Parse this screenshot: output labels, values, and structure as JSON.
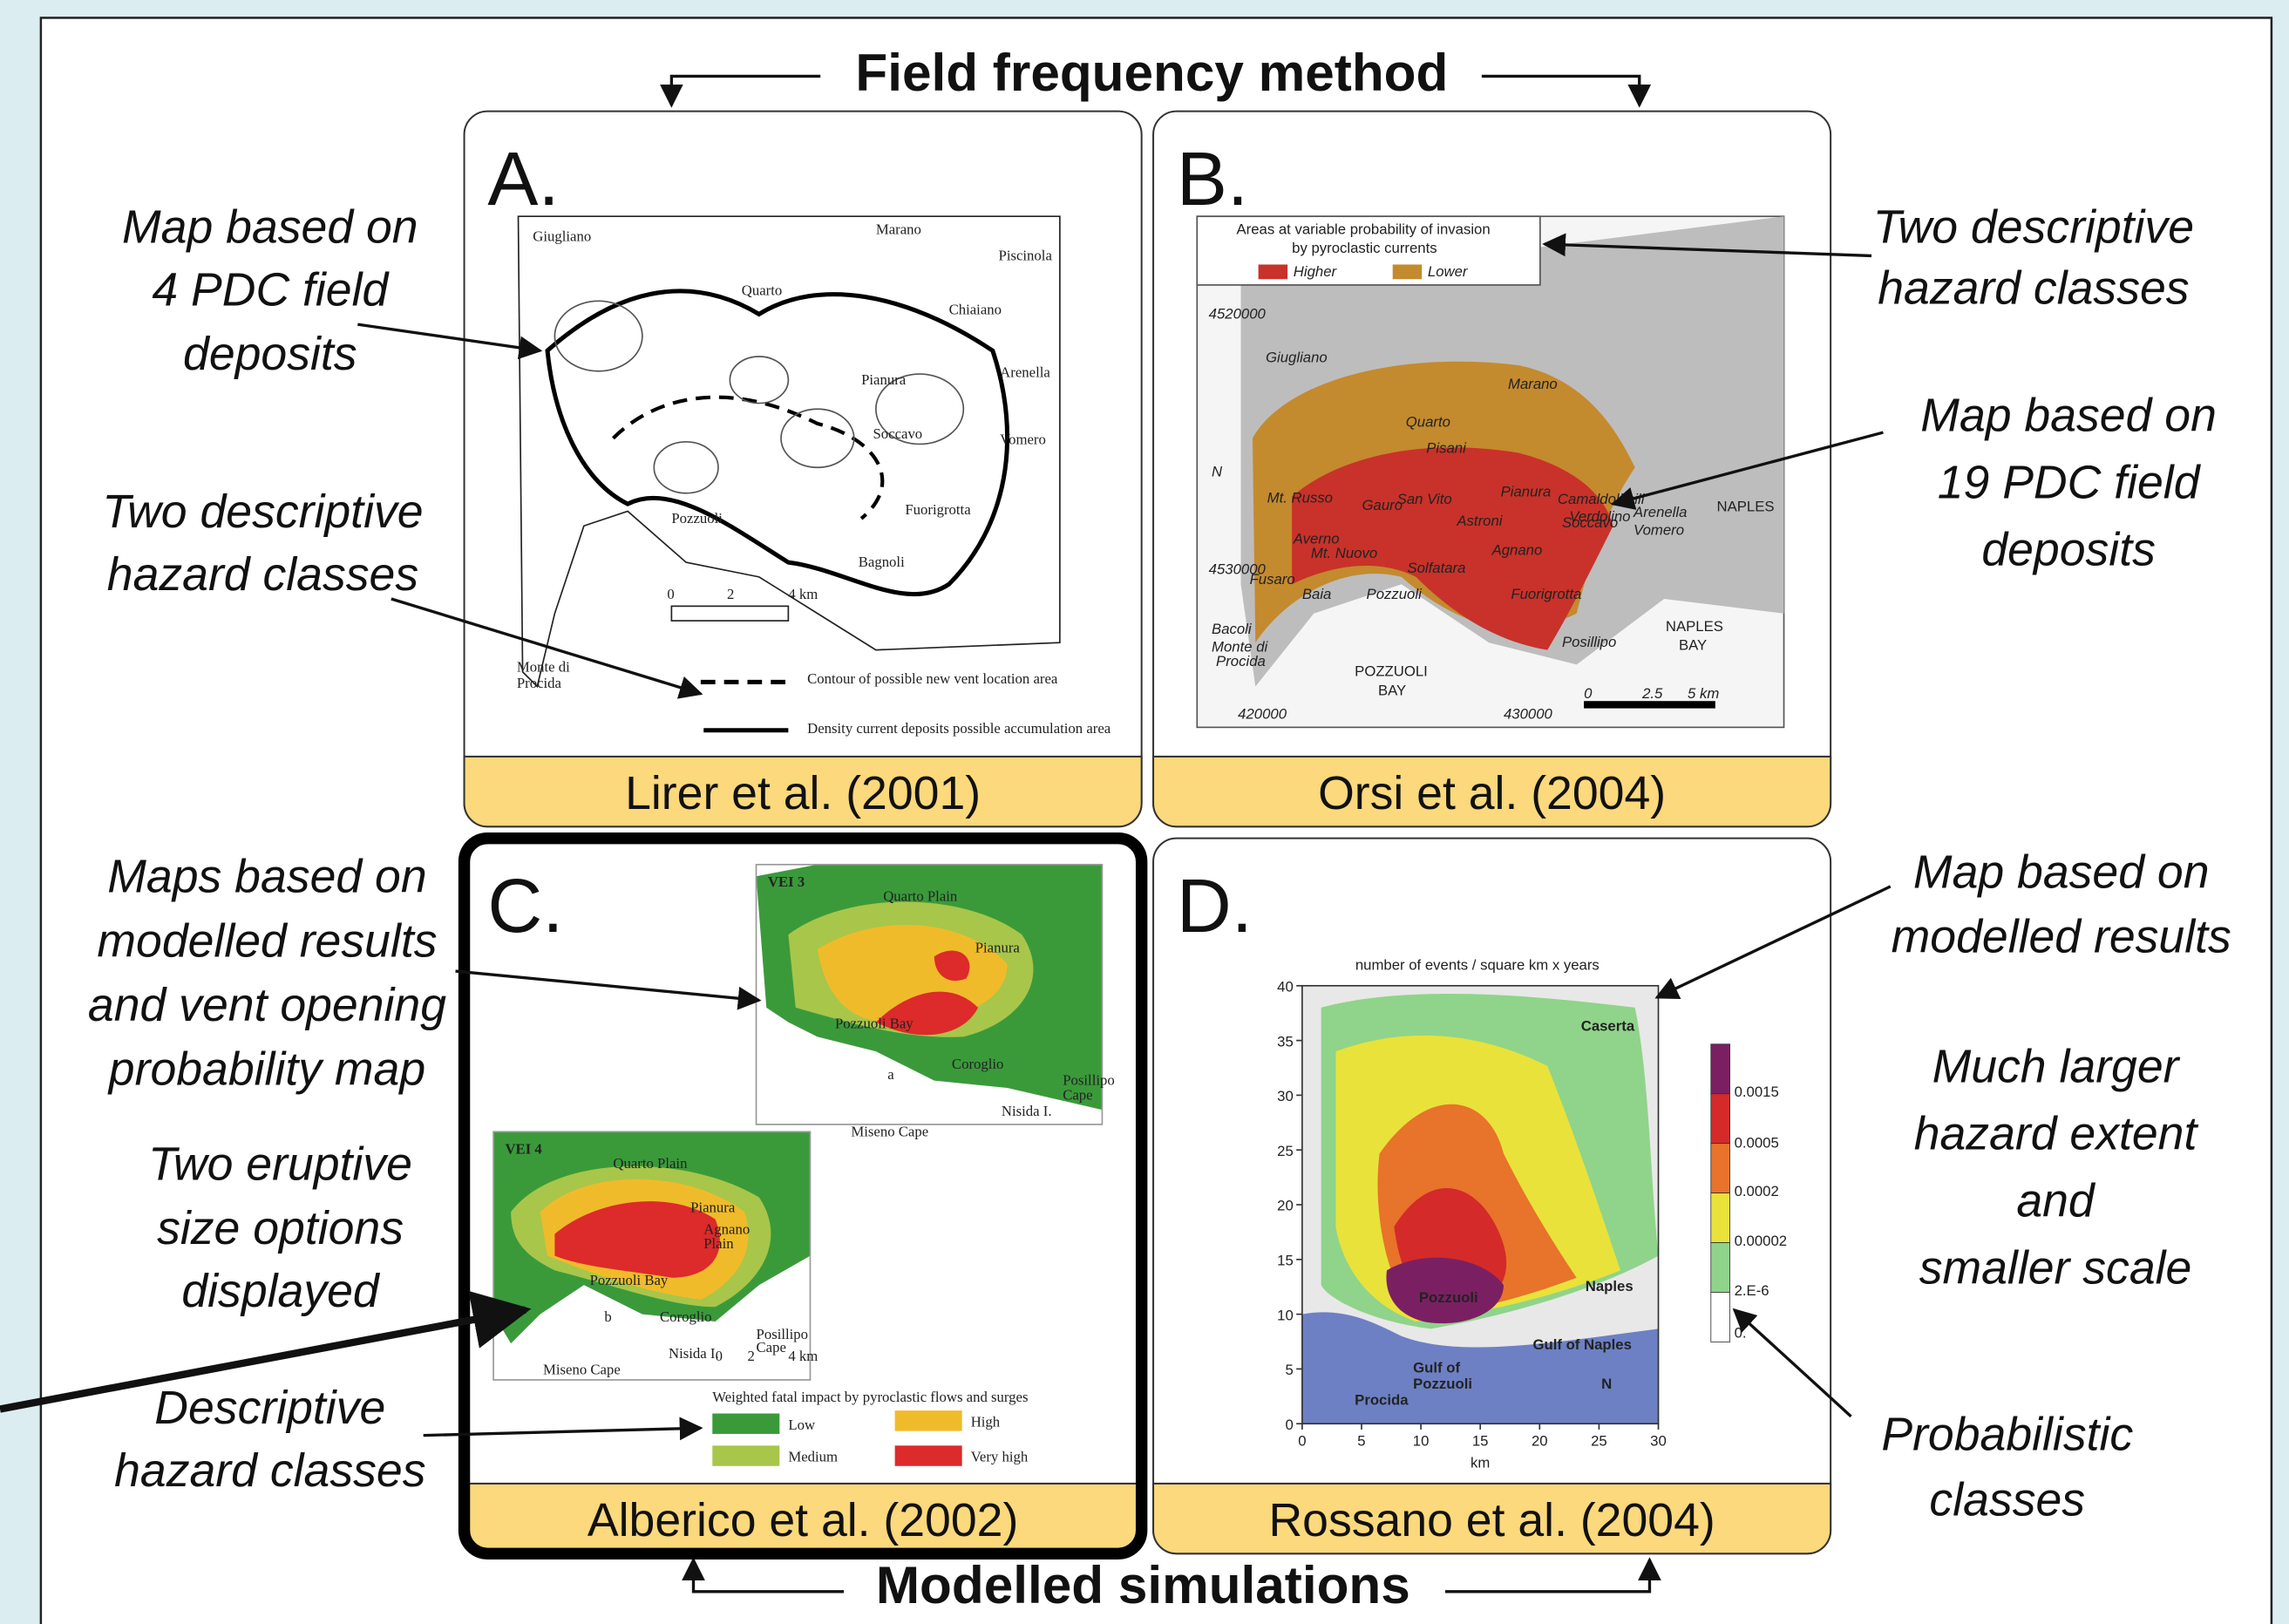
{
  "header": {
    "top_title": "Field frequency method",
    "bottom_title": "Modelled simulations"
  },
  "left_annotations": [
    [
      "Map based on",
      "4 PDC field",
      "deposits"
    ],
    [
      "Two descriptive",
      "hazard classes"
    ],
    [
      "Maps based on",
      "modelled results",
      "and vent opening",
      "probability map"
    ],
    [
      "Two eruptive",
      "size options",
      "displayed"
    ],
    [
      "Descriptive",
      "hazard classes"
    ]
  ],
  "right_annotations": [
    [
      "Two descriptive",
      "hazard classes"
    ],
    [
      "Map based on",
      "19 PDC field",
      "deposits"
    ],
    [
      "Map based on",
      "modelled results"
    ],
    [
      "Much larger",
      "hazard extent",
      "and",
      "smaller scale"
    ],
    [
      "Probabilistic",
      "classes"
    ]
  ],
  "panels": [
    {
      "letter": "A.",
      "citation": "Lirer et al. (2001)",
      "labels": [
        "Giugliano",
        "Marano",
        "Piscinola",
        "Quarto",
        "Chiaiano",
        "Pianura",
        "Arenella",
        "Soccavo",
        "Vomero",
        "Fuorigrotta",
        "Pozzuoli",
        "Bagnoli",
        "Monte di",
        "Procida",
        "0",
        "2",
        "4 km"
      ],
      "legend": [
        "Contour of possible new vent location area",
        "Density current deposits possible accumulation area"
      ]
    },
    {
      "letter": "B.",
      "citation": "Orsi et al. (2004)",
      "legend_title": [
        "Areas at variable probability of invasion",
        "by pyroclastic currents"
      ],
      "legend": [
        "Higher",
        "Lower"
      ],
      "labels": [
        "Giugliano",
        "Marano",
        "Quarto",
        "Pisani",
        "Camaldoli hill",
        "Verdolino",
        "Mt. Russo",
        "Gauro",
        "San Vito",
        "Astroni",
        "Pianura",
        "Soccavo",
        "Arenella",
        "Vomero",
        "NAPLES",
        "Averno",
        "Mt. Nuovo",
        "Solfatara",
        "Agnano",
        "Baia",
        "Pozzuoli",
        "Fuorigrotta",
        "Posillipo",
        "Fusaro",
        "Bacoli",
        "Monte di",
        "Procida",
        "POZZUOLI",
        "BAY",
        "NAPLES",
        "BAY",
        "N",
        "0",
        "2.5",
        "5 km",
        "420000",
        "430000",
        "4520000",
        "4530000"
      ]
    },
    {
      "letter": "C.",
      "citation": "Alberico et al. (2002)",
      "labels": [
        "VEI 3",
        "Quarto Plain",
        "Pianura",
        "Pozzuoli Bay",
        "Coroglio",
        "Nisida I.",
        "Posillipo",
        "Cape",
        "Miseno Cape",
        "a",
        "VEI 4",
        "Quarto Plain",
        "Pianura",
        "Agnano",
        "Plain",
        "Pozzuoli Bay",
        "Coroglio",
        "Nisida I.",
        "Posillipo",
        "Cape",
        "Miseno Cape",
        "b",
        "0",
        "2",
        "4 km"
      ],
      "legend_title": "Weighted fatal impact by pyroclastic flows and surges",
      "legend": [
        "Low",
        "High",
        "Medium",
        "Very high"
      ]
    },
    {
      "letter": "D.",
      "citation": "Rossano et al. (2004)",
      "title": "number of events / square km x years",
      "y_ticks": [
        0,
        5,
        10,
        15,
        20,
        25,
        30,
        35,
        40
      ],
      "x_ticks": [
        0,
        5,
        10,
        15,
        20,
        25,
        30
      ],
      "x_label": "km",
      "labels": [
        "Caserta",
        "Naples",
        "Pozzuoli",
        "Gulf of Naples",
        "Gulf of",
        "Pozzuoli",
        "Procida",
        "N"
      ],
      "legend": [
        "0.0015",
        "0.0005",
        "0.0002",
        "0.00002",
        "2.E-6",
        "0."
      ]
    }
  ]
}
